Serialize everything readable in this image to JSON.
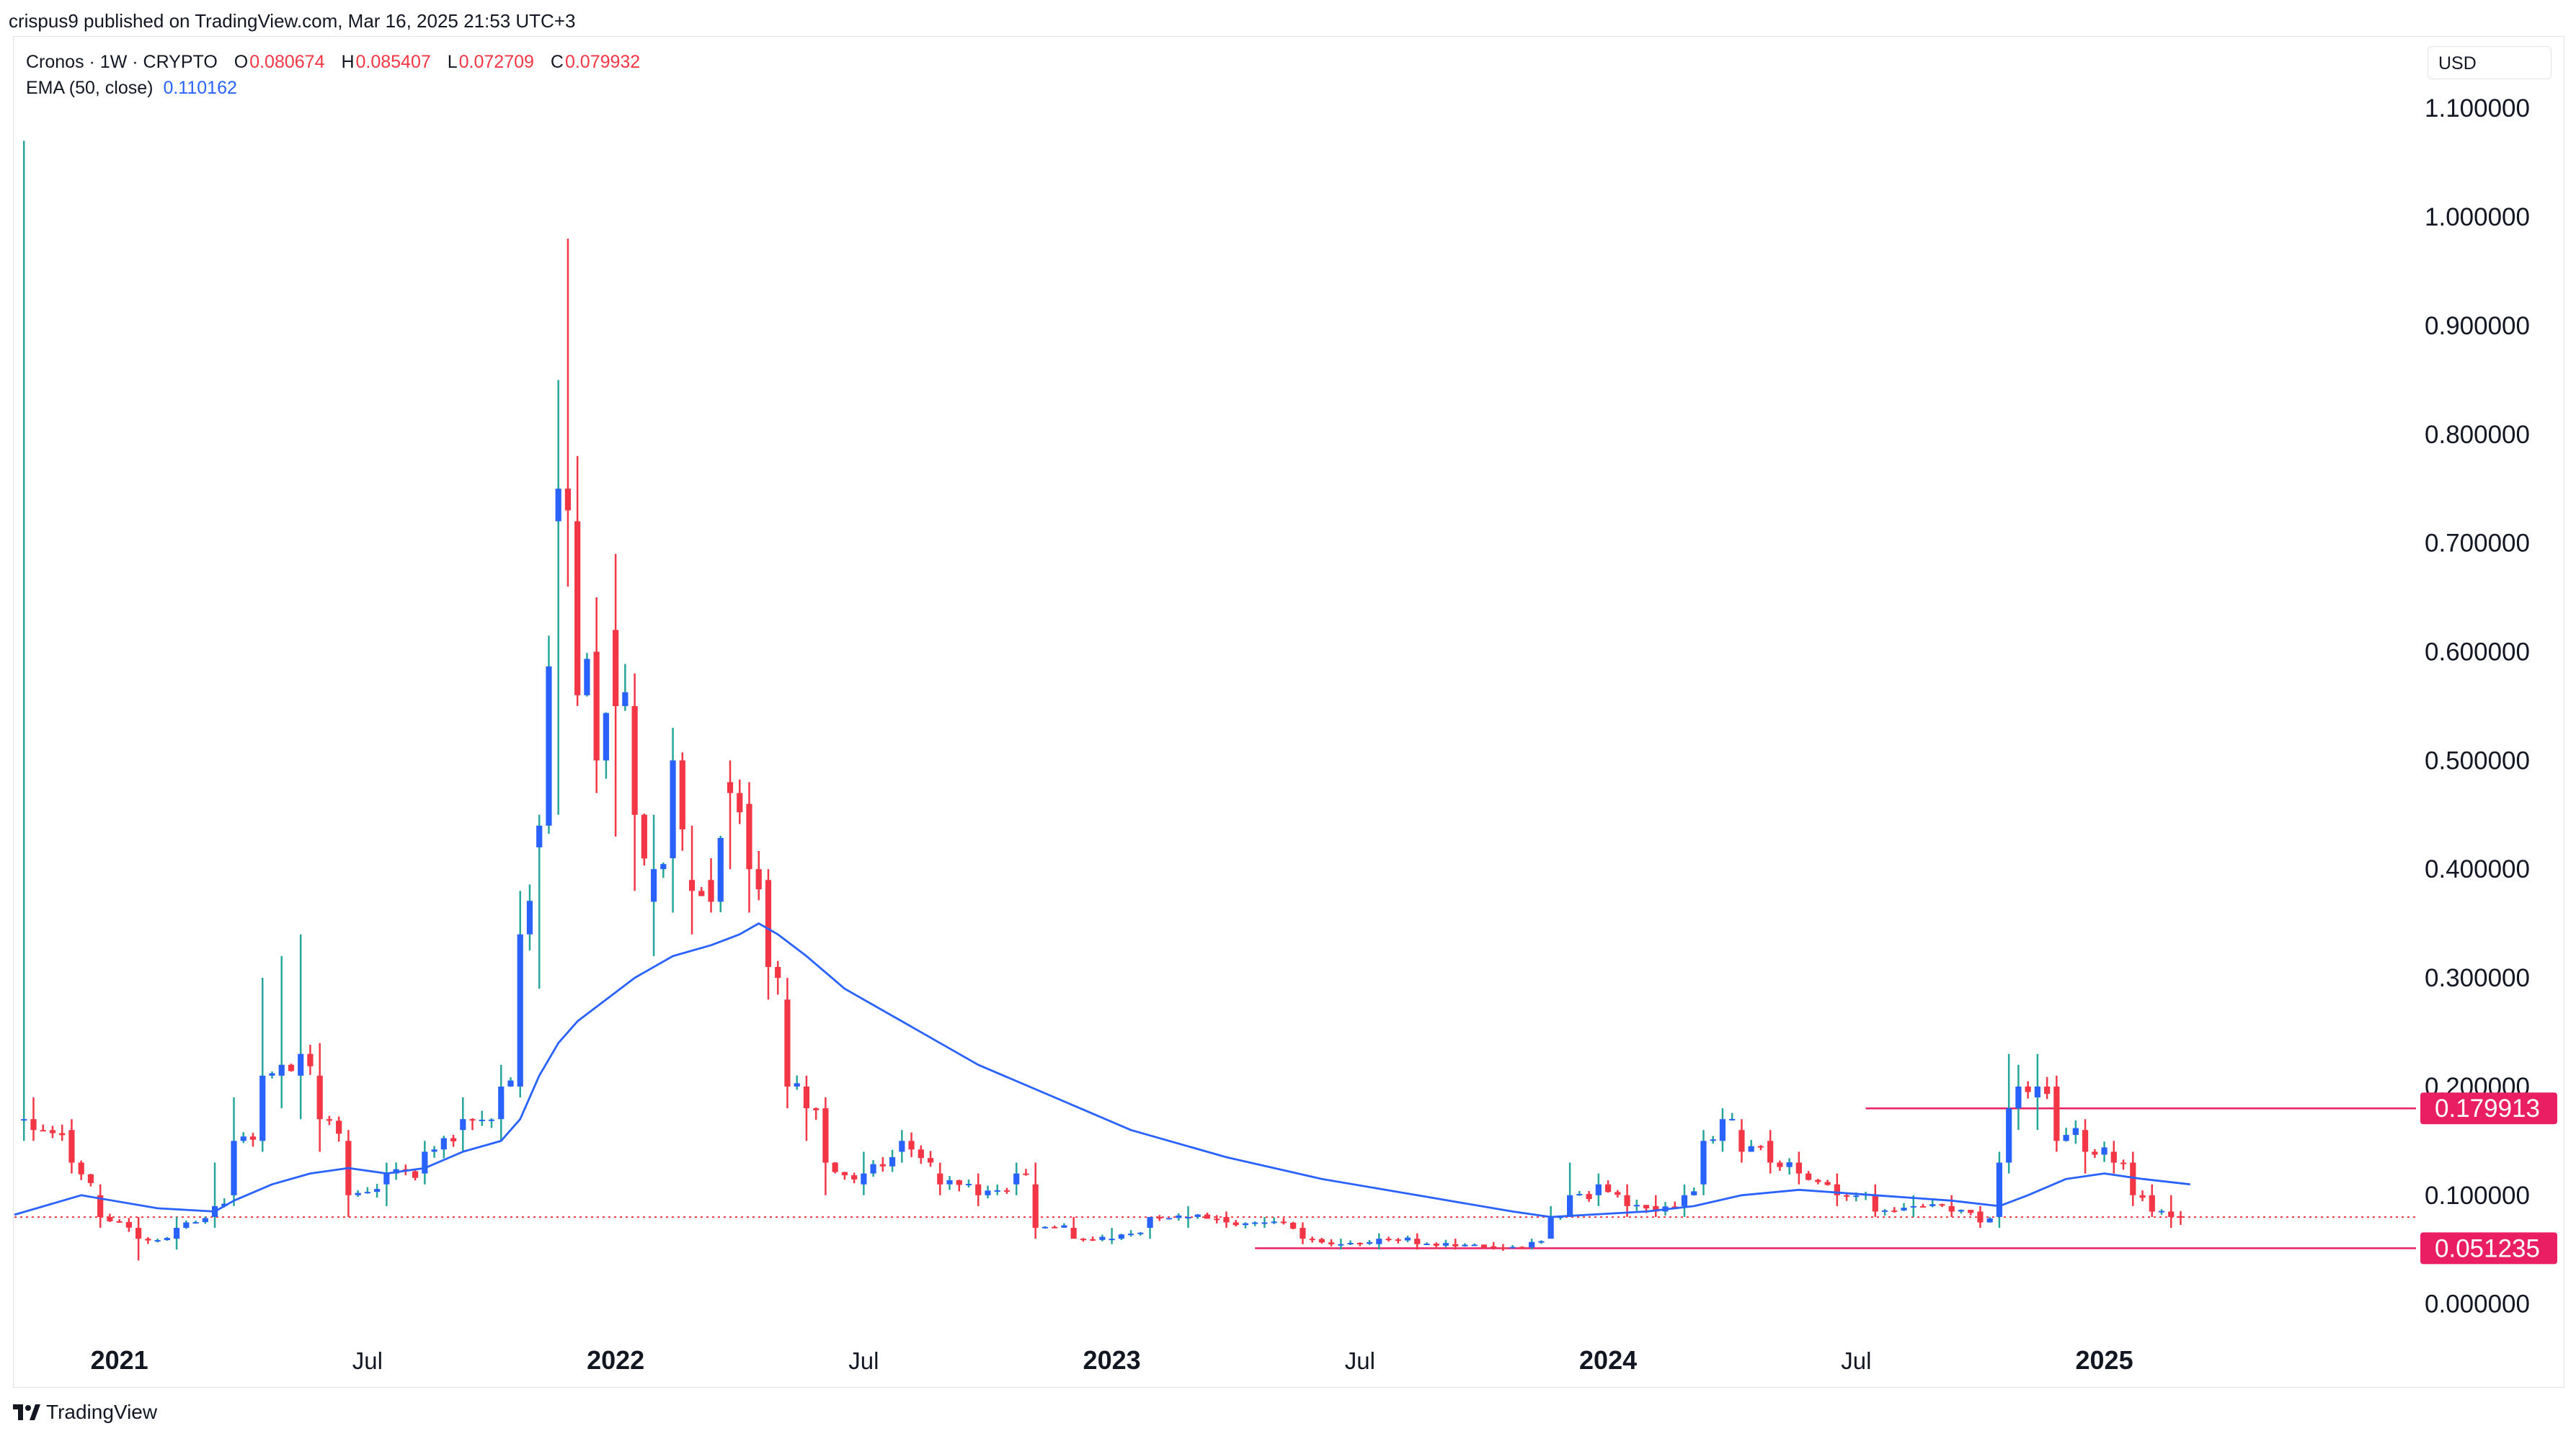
{
  "header": {
    "published": "crispus9 published on TradingView.com, Mar 16, 2025 21:53 UTC+3"
  },
  "legend": {
    "symbol": "Cronos · 1W · CRYPTO",
    "o_label": "O",
    "o_value": "0.080674",
    "h_label": "H",
    "h_value": "0.085407",
    "l_label": "L",
    "l_value": "0.072709",
    "c_label": "C",
    "c_value": "0.079932",
    "ema_label": "EMA (50, close)",
    "ema_value": "0.110162"
  },
  "currency_button": "USD",
  "footer": {
    "brand": "TradingView"
  },
  "colors": {
    "up": "#2962ff",
    "down": "#f23645",
    "up_wick": "#26a69a",
    "ema": "#2962ff",
    "level": "#e91e63",
    "grid": "#f0f3fa"
  },
  "chart_data": {
    "type": "candlestick",
    "interval": "1W",
    "ylim": [
      -0.04,
      1.12
    ],
    "y_ticks": [
      "0.000000",
      "0.100000",
      "0.200000",
      "0.300000",
      "0.400000",
      "0.500000",
      "0.600000",
      "0.700000",
      "0.800000",
      "0.900000",
      "1.000000",
      "1.100000"
    ],
    "x_labels": [
      {
        "label": "2021",
        "t": 0.0
      },
      {
        "label": "Jul",
        "t": 26
      },
      {
        "label": "2022",
        "t": 52
      },
      {
        "label": "Jul",
        "t": 78
      },
      {
        "label": "2023",
        "t": 104
      },
      {
        "label": "Jul",
        "t": 130
      },
      {
        "label": "2024",
        "t": 156
      },
      {
        "label": "Jul",
        "t": 182
      },
      {
        "label": "2025",
        "t": 208
      }
    ],
    "year_labels": [
      "2021",
      "2022",
      "2023",
      "2024",
      "2025"
    ],
    "t_range": [
      -11,
      239
    ],
    "horizontal_levels": [
      {
        "label": "0.179913",
        "value": 0.179913,
        "t_start": 183
      },
      {
        "label": "0.051235",
        "value": 0.051235,
        "t_start": 119
      }
    ],
    "current_price": 0.079932,
    "keypoints": [
      {
        "t": -10,
        "o": 0.17,
        "h": 1.07,
        "l": 0.15,
        "c": 0.17
      },
      {
        "t": -9,
        "o": 0.17,
        "h": 0.19,
        "l": 0.15,
        "c": 0.16
      },
      {
        "t": -5,
        "o": 0.16,
        "h": 0.17,
        "l": 0.12,
        "c": 0.13
      },
      {
        "t": -2,
        "o": 0.1,
        "h": 0.11,
        "l": 0.07,
        "c": 0.08
      },
      {
        "t": 2,
        "o": 0.07,
        "h": 0.08,
        "l": 0.04,
        "c": 0.06
      },
      {
        "t": 6,
        "o": 0.06,
        "h": 0.08,
        "l": 0.05,
        "c": 0.07
      },
      {
        "t": 10,
        "o": 0.08,
        "h": 0.13,
        "l": 0.07,
        "c": 0.09
      },
      {
        "t": 12,
        "o": 0.1,
        "h": 0.19,
        "l": 0.09,
        "c": 0.15
      },
      {
        "t": 15,
        "o": 0.15,
        "h": 0.3,
        "l": 0.14,
        "c": 0.21
      },
      {
        "t": 17,
        "o": 0.21,
        "h": 0.32,
        "l": 0.18,
        "c": 0.22
      },
      {
        "t": 19,
        "o": 0.21,
        "h": 0.34,
        "l": 0.17,
        "c": 0.23
      },
      {
        "t": 21,
        "o": 0.21,
        "h": 0.24,
        "l": 0.14,
        "c": 0.17
      },
      {
        "t": 24,
        "o": 0.15,
        "h": 0.16,
        "l": 0.08,
        "c": 0.1
      },
      {
        "t": 28,
        "o": 0.11,
        "h": 0.13,
        "l": 0.09,
        "c": 0.12
      },
      {
        "t": 32,
        "o": 0.12,
        "h": 0.15,
        "l": 0.11,
        "c": 0.14
      },
      {
        "t": 36,
        "o": 0.16,
        "h": 0.19,
        "l": 0.14,
        "c": 0.17
      },
      {
        "t": 40,
        "o": 0.17,
        "h": 0.22,
        "l": 0.15,
        "c": 0.2
      },
      {
        "t": 42,
        "o": 0.2,
        "h": 0.38,
        "l": 0.19,
        "c": 0.34
      },
      {
        "t": 44,
        "o": 0.42,
        "h": 0.45,
        "l": 0.29,
        "c": 0.44
      },
      {
        "t": 46,
        "o": 0.72,
        "h": 0.85,
        "l": 0.45,
        "c": 0.75
      },
      {
        "t": 47,
        "o": 0.75,
        "h": 0.98,
        "l": 0.66,
        "c": 0.73
      },
      {
        "t": 48,
        "o": 0.72,
        "h": 0.78,
        "l": 0.55,
        "c": 0.56
      },
      {
        "t": 50,
        "o": 0.6,
        "h": 0.65,
        "l": 0.47,
        "c": 0.5
      },
      {
        "t": 52,
        "o": 0.62,
        "h": 0.69,
        "l": 0.43,
        "c": 0.55
      },
      {
        "t": 54,
        "o": 0.55,
        "h": 0.58,
        "l": 0.38,
        "c": 0.45
      },
      {
        "t": 56,
        "o": 0.37,
        "h": 0.45,
        "l": 0.32,
        "c": 0.4
      },
      {
        "t": 58,
        "o": 0.41,
        "h": 0.53,
        "l": 0.36,
        "c": 0.5
      },
      {
        "t": 60,
        "o": 0.39,
        "h": 0.44,
        "l": 0.34,
        "c": 0.38
      },
      {
        "t": 62,
        "o": 0.39,
        "h": 0.41,
        "l": 0.36,
        "c": 0.37
      },
      {
        "t": 64,
        "o": 0.48,
        "h": 0.5,
        "l": 0.4,
        "c": 0.47
      },
      {
        "t": 66,
        "o": 0.46,
        "h": 0.48,
        "l": 0.36,
        "c": 0.4
      },
      {
        "t": 68,
        "o": 0.39,
        "h": 0.4,
        "l": 0.28,
        "c": 0.31
      },
      {
        "t": 70,
        "o": 0.28,
        "h": 0.3,
        "l": 0.18,
        "c": 0.2
      },
      {
        "t": 72,
        "o": 0.2,
        "h": 0.21,
        "l": 0.15,
        "c": 0.18
      },
      {
        "t": 74,
        "o": 0.18,
        "h": 0.19,
        "l": 0.1,
        "c": 0.13
      },
      {
        "t": 78,
        "o": 0.11,
        "h": 0.14,
        "l": 0.1,
        "c": 0.12
      },
      {
        "t": 82,
        "o": 0.14,
        "h": 0.16,
        "l": 0.13,
        "c": 0.15
      },
      {
        "t": 86,
        "o": 0.12,
        "h": 0.13,
        "l": 0.1,
        "c": 0.11
      },
      {
        "t": 90,
        "o": 0.11,
        "h": 0.12,
        "l": 0.09,
        "c": 0.1
      },
      {
        "t": 94,
        "o": 0.11,
        "h": 0.13,
        "l": 0.1,
        "c": 0.12
      },
      {
        "t": 96,
        "o": 0.11,
        "h": 0.13,
        "l": 0.06,
        "c": 0.07
      },
      {
        "t": 100,
        "o": 0.07,
        "h": 0.08,
        "l": 0.06,
        "c": 0.06
      },
      {
        "t": 104,
        "o": 0.06,
        "h": 0.07,
        "l": 0.055,
        "c": 0.06
      },
      {
        "t": 108,
        "o": 0.07,
        "h": 0.08,
        "l": 0.06,
        "c": 0.08
      },
      {
        "t": 112,
        "o": 0.08,
        "h": 0.09,
        "l": 0.07,
        "c": 0.08
      },
      {
        "t": 116,
        "o": 0.08,
        "h": 0.085,
        "l": 0.07,
        "c": 0.075
      },
      {
        "t": 120,
        "o": 0.075,
        "h": 0.08,
        "l": 0.07,
        "c": 0.075
      },
      {
        "t": 124,
        "o": 0.07,
        "h": 0.075,
        "l": 0.055,
        "c": 0.06
      },
      {
        "t": 128,
        "o": 0.055,
        "h": 0.06,
        "l": 0.05,
        "c": 0.055
      },
      {
        "t": 132,
        "o": 0.055,
        "h": 0.065,
        "l": 0.05,
        "c": 0.06
      },
      {
        "t": 136,
        "o": 0.06,
        "h": 0.065,
        "l": 0.05,
        "c": 0.055
      },
      {
        "t": 140,
        "o": 0.055,
        "h": 0.06,
        "l": 0.05,
        "c": 0.053
      },
      {
        "t": 144,
        "o": 0.053,
        "h": 0.057,
        "l": 0.05,
        "c": 0.052
      },
      {
        "t": 148,
        "o": 0.052,
        "h": 0.06,
        "l": 0.05,
        "c": 0.057
      },
      {
        "t": 150,
        "o": 0.06,
        "h": 0.09,
        "l": 0.06,
        "c": 0.08
      },
      {
        "t": 152,
        "o": 0.08,
        "h": 0.13,
        "l": 0.08,
        "c": 0.1
      },
      {
        "t": 155,
        "o": 0.1,
        "h": 0.12,
        "l": 0.09,
        "c": 0.11
      },
      {
        "t": 158,
        "o": 0.1,
        "h": 0.11,
        "l": 0.08,
        "c": 0.09
      },
      {
        "t": 161,
        "o": 0.09,
        "h": 0.1,
        "l": 0.08,
        "c": 0.085
      },
      {
        "t": 164,
        "o": 0.09,
        "h": 0.11,
        "l": 0.08,
        "c": 0.1
      },
      {
        "t": 166,
        "o": 0.11,
        "h": 0.16,
        "l": 0.1,
        "c": 0.15
      },
      {
        "t": 168,
        "o": 0.15,
        "h": 0.18,
        "l": 0.14,
        "c": 0.17
      },
      {
        "t": 170,
        "o": 0.16,
        "h": 0.17,
        "l": 0.13,
        "c": 0.14
      },
      {
        "t": 173,
        "o": 0.15,
        "h": 0.16,
        "l": 0.12,
        "c": 0.13
      },
      {
        "t": 176,
        "o": 0.13,
        "h": 0.14,
        "l": 0.11,
        "c": 0.12
      },
      {
        "t": 180,
        "o": 0.11,
        "h": 0.12,
        "l": 0.09,
        "c": 0.1
      },
      {
        "t": 184,
        "o": 0.1,
        "h": 0.11,
        "l": 0.08,
        "c": 0.085
      },
      {
        "t": 188,
        "o": 0.09,
        "h": 0.1,
        "l": 0.08,
        "c": 0.09
      },
      {
        "t": 192,
        "o": 0.09,
        "h": 0.1,
        "l": 0.08,
        "c": 0.085
      },
      {
        "t": 195,
        "o": 0.085,
        "h": 0.09,
        "l": 0.07,
        "c": 0.075
      },
      {
        "t": 197,
        "o": 0.08,
        "h": 0.14,
        "l": 0.07,
        "c": 0.13
      },
      {
        "t": 198,
        "o": 0.13,
        "h": 0.23,
        "l": 0.12,
        "c": 0.18
      },
      {
        "t": 199,
        "o": 0.18,
        "h": 0.22,
        "l": 0.16,
        "c": 0.2
      },
      {
        "t": 201,
        "o": 0.19,
        "h": 0.23,
        "l": 0.16,
        "c": 0.2
      },
      {
        "t": 203,
        "o": 0.2,
        "h": 0.21,
        "l": 0.14,
        "c": 0.15
      },
      {
        "t": 206,
        "o": 0.16,
        "h": 0.17,
        "l": 0.12,
        "c": 0.14
      },
      {
        "t": 209,
        "o": 0.14,
        "h": 0.15,
        "l": 0.12,
        "c": 0.13
      },
      {
        "t": 211,
        "o": 0.13,
        "h": 0.14,
        "l": 0.09,
        "c": 0.1
      },
      {
        "t": 213,
        "o": 0.1,
        "h": 0.11,
        "l": 0.08,
        "c": 0.085
      },
      {
        "t": 215,
        "o": 0.085,
        "h": 0.1,
        "l": 0.07,
        "c": 0.08
      },
      {
        "t": 216,
        "o": 0.080674,
        "h": 0.085407,
        "l": 0.072709,
        "c": 0.079932
      }
    ],
    "ema_points": [
      {
        "t": -11,
        "v": 0.082
      },
      {
        "t": -4,
        "v": 0.1
      },
      {
        "t": 4,
        "v": 0.088
      },
      {
        "t": 10,
        "v": 0.085
      },
      {
        "t": 12,
        "v": 0.095
      },
      {
        "t": 16,
        "v": 0.11
      },
      {
        "t": 20,
        "v": 0.12
      },
      {
        "t": 24,
        "v": 0.125
      },
      {
        "t": 28,
        "v": 0.12
      },
      {
        "t": 32,
        "v": 0.125
      },
      {
        "t": 36,
        "v": 0.14
      },
      {
        "t": 40,
        "v": 0.15
      },
      {
        "t": 42,
        "v": 0.17
      },
      {
        "t": 44,
        "v": 0.21
      },
      {
        "t": 46,
        "v": 0.24
      },
      {
        "t": 48,
        "v": 0.26
      },
      {
        "t": 51,
        "v": 0.28
      },
      {
        "t": 54,
        "v": 0.3
      },
      {
        "t": 58,
        "v": 0.32
      },
      {
        "t": 62,
        "v": 0.33
      },
      {
        "t": 65,
        "v": 0.34
      },
      {
        "t": 67,
        "v": 0.35
      },
      {
        "t": 69,
        "v": 0.34
      },
      {
        "t": 72,
        "v": 0.32
      },
      {
        "t": 76,
        "v": 0.29
      },
      {
        "t": 82,
        "v": 0.26
      },
      {
        "t": 90,
        "v": 0.22
      },
      {
        "t": 98,
        "v": 0.19
      },
      {
        "t": 106,
        "v": 0.16
      },
      {
        "t": 116,
        "v": 0.135
      },
      {
        "t": 126,
        "v": 0.115
      },
      {
        "t": 136,
        "v": 0.1
      },
      {
        "t": 146,
        "v": 0.085
      },
      {
        "t": 150,
        "v": 0.08
      },
      {
        "t": 154,
        "v": 0.082
      },
      {
        "t": 160,
        "v": 0.085
      },
      {
        "t": 165,
        "v": 0.09
      },
      {
        "t": 170,
        "v": 0.1
      },
      {
        "t": 176,
        "v": 0.105
      },
      {
        "t": 184,
        "v": 0.1
      },
      {
        "t": 192,
        "v": 0.095
      },
      {
        "t": 197,
        "v": 0.09
      },
      {
        "t": 200,
        "v": 0.1
      },
      {
        "t": 204,
        "v": 0.115
      },
      {
        "t": 208,
        "v": 0.12
      },
      {
        "t": 212,
        "v": 0.115
      },
      {
        "t": 217,
        "v": 0.11
      }
    ]
  }
}
